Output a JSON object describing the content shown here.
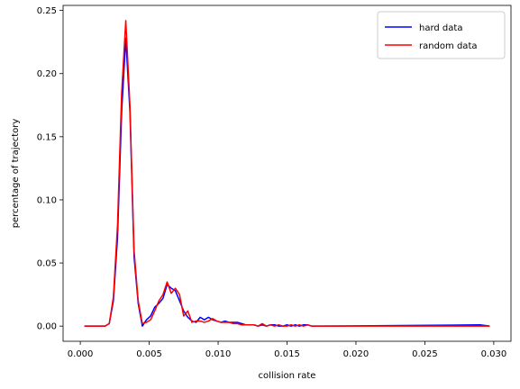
{
  "chart_data": {
    "type": "line",
    "title": "",
    "xlabel": "collision rate",
    "ylabel": "percentage of trajectory",
    "xlim": [
      -0.00125,
      0.03125
    ],
    "ylim": [
      -0.012,
      0.254
    ],
    "xticks": [
      0.0,
      0.005,
      0.01,
      0.015,
      0.02,
      0.025,
      0.03
    ],
    "xtick_labels": [
      "0.000",
      "0.005",
      "0.010",
      "0.015",
      "0.020",
      "0.025",
      "0.030"
    ],
    "yticks": [
      0.0,
      0.05,
      0.1,
      0.15,
      0.2,
      0.25
    ],
    "ytick_labels": [
      "0.00",
      "0.05",
      "0.10",
      "0.15",
      "0.20",
      "0.25"
    ],
    "grid": false,
    "legend_position": "top-right",
    "series": [
      {
        "name": "hard data",
        "color": "#0000ff",
        "x": [
          0.0003,
          0.0018,
          0.0021,
          0.0024,
          0.0027,
          0.003,
          0.0033,
          0.0036,
          0.0039,
          0.0042,
          0.0045,
          0.0048,
          0.0051,
          0.0054,
          0.0057,
          0.006,
          0.0063,
          0.0066,
          0.0069,
          0.0072,
          0.0075,
          0.0078,
          0.0081,
          0.0084,
          0.0087,
          0.009,
          0.0093,
          0.0096,
          0.0099,
          0.0102,
          0.0105,
          0.0108,
          0.0111,
          0.0114,
          0.0117,
          0.012,
          0.0123,
          0.0126,
          0.0129,
          0.0132,
          0.0135,
          0.0138,
          0.0141,
          0.0144,
          0.0147,
          0.015,
          0.0153,
          0.0156,
          0.0159,
          0.0162,
          0.0165,
          0.0168,
          0.0171,
          0.0174,
          0.029,
          0.0297
        ],
        "values": [
          0.0,
          0.0,
          0.002,
          0.02,
          0.07,
          0.17,
          0.228,
          0.17,
          0.055,
          0.018,
          0.0,
          0.005,
          0.008,
          0.015,
          0.018,
          0.022,
          0.033,
          0.03,
          0.028,
          0.02,
          0.012,
          0.007,
          0.004,
          0.003,
          0.007,
          0.005,
          0.007,
          0.005,
          0.004,
          0.003,
          0.004,
          0.003,
          0.003,
          0.003,
          0.002,
          0.001,
          0.001,
          0.001,
          0.0,
          0.001,
          0.0,
          0.001,
          0.001,
          0.0,
          0.0,
          0.001,
          0.0,
          0.001,
          0.0,
          0.001,
          0.001,
          0.0,
          0.0,
          0.0,
          0.001,
          0.0
        ]
      },
      {
        "name": "random data",
        "color": "#ff0000",
        "x": [
          0.0003,
          0.0018,
          0.0021,
          0.0024,
          0.0027,
          0.003,
          0.0033,
          0.0036,
          0.0039,
          0.0042,
          0.0045,
          0.0048,
          0.0051,
          0.0054,
          0.0057,
          0.006,
          0.0063,
          0.0066,
          0.0069,
          0.0072,
          0.0075,
          0.0078,
          0.0081,
          0.0084,
          0.0087,
          0.009,
          0.0093,
          0.0096,
          0.0099,
          0.0102,
          0.0105,
          0.0108,
          0.0111,
          0.0114,
          0.0117,
          0.012,
          0.0123,
          0.0126,
          0.0129,
          0.0132,
          0.0135,
          0.0138,
          0.0141,
          0.0144,
          0.0147,
          0.015,
          0.0153,
          0.0156,
          0.0159,
          0.0162,
          0.0165,
          0.0168,
          0.0171,
          0.0174,
          0.029,
          0.0297
        ],
        "values": [
          0.0,
          0.0,
          0.002,
          0.023,
          0.08,
          0.185,
          0.242,
          0.175,
          0.06,
          0.02,
          0.002,
          0.003,
          0.005,
          0.012,
          0.02,
          0.025,
          0.035,
          0.026,
          0.03,
          0.025,
          0.008,
          0.012,
          0.003,
          0.004,
          0.004,
          0.003,
          0.004,
          0.006,
          0.004,
          0.003,
          0.003,
          0.003,
          0.002,
          0.002,
          0.001,
          0.001,
          0.001,
          0.001,
          0.0,
          0.002,
          0.0,
          0.001,
          0.0,
          0.001,
          0.0,
          0.0,
          0.001,
          0.0,
          0.001,
          0.0,
          0.001,
          0.0,
          0.0,
          0.0,
          0.0,
          0.0
        ]
      }
    ]
  }
}
